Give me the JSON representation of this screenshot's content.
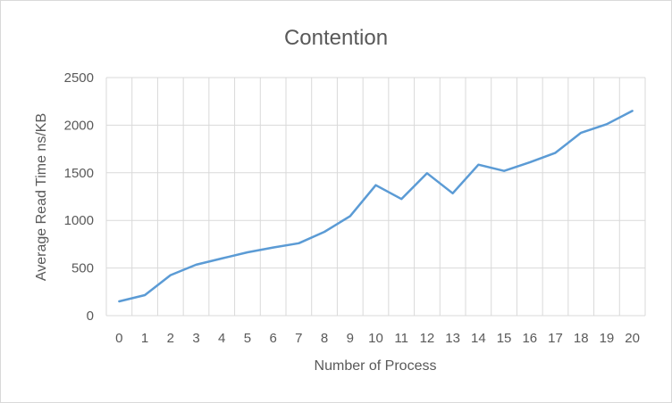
{
  "chart_data": {
    "type": "line",
    "title": "Contention",
    "xlabel": "Number of Process",
    "ylabel": "Average Read Time ns/KB",
    "x": [
      0,
      1,
      2,
      3,
      4,
      5,
      6,
      7,
      8,
      9,
      10,
      11,
      12,
      13,
      14,
      15,
      16,
      17,
      18,
      19,
      20
    ],
    "series": [
      {
        "values": [
          150,
          215,
          425,
          535,
          600,
          665,
          715,
          760,
          880,
          1045,
          1370,
          1225,
          1495,
          1285,
          1585,
          1520,
          1610,
          1710,
          1920,
          2010,
          2150
        ]
      }
    ],
    "ylim": [
      0,
      2500
    ],
    "yticks": [
      0,
      500,
      1000,
      1500,
      2000,
      2500
    ],
    "grid": true,
    "legend": "none",
    "colors": {
      "line": "#5b9bd5",
      "grid": "#d9d9d9",
      "text": "#595959"
    }
  }
}
